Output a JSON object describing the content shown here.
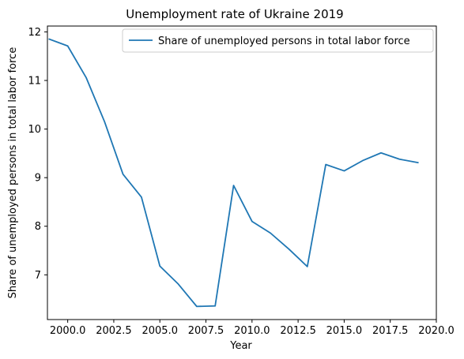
{
  "chart_data": {
    "type": "line",
    "title": "Unemployment rate of Ukraine 2019",
    "xlabel": "Year",
    "ylabel": "Share of unemployed persons in total labor force",
    "xlim": [
      1998.9,
      2020.0
    ],
    "ylim": [
      6.08,
      12.12
    ],
    "x_ticks": [
      2000.0,
      2002.5,
      2005.0,
      2007.5,
      2010.0,
      2012.5,
      2015.0,
      2017.5,
      2020.0
    ],
    "x_tick_labels": [
      "2000.0",
      "2002.5",
      "2005.0",
      "2007.5",
      "2010.0",
      "2012.5",
      "2015.0",
      "2017.5",
      "2020.0"
    ],
    "y_ticks": [
      7,
      8,
      9,
      10,
      11,
      12
    ],
    "y_tick_labels": [
      "7",
      "8",
      "9",
      "10",
      "11",
      "12"
    ],
    "grid": false,
    "legend_position": "top-right",
    "series": [
      {
        "name": "Share of unemployed persons in total labor force",
        "color": "#1f77b4",
        "x": [
          1999,
          2000,
          2001,
          2002,
          2003,
          2004,
          2005,
          2006,
          2007,
          2008,
          2009,
          2010,
          2011,
          2012,
          2013,
          2014,
          2015,
          2016,
          2017,
          2018,
          2019
        ],
        "y": [
          11.85,
          11.71,
          11.06,
          10.15,
          9.07,
          8.6,
          7.18,
          6.81,
          6.35,
          6.36,
          8.84,
          8.1,
          7.86,
          7.53,
          7.17,
          9.27,
          9.14,
          9.35,
          9.51,
          9.38,
          9.31
        ]
      }
    ]
  }
}
